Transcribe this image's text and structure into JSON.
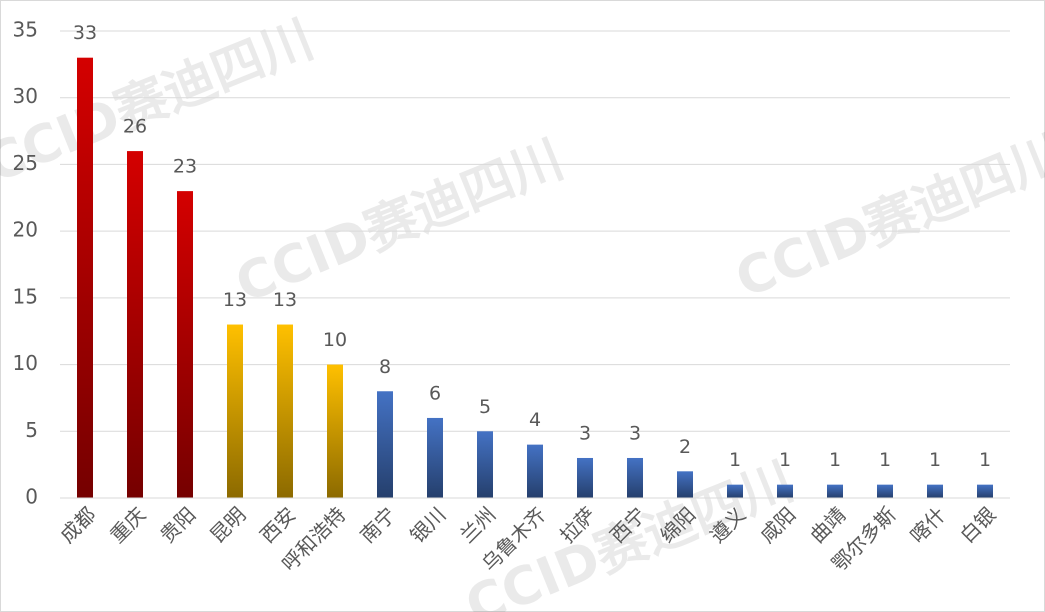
{
  "chart_data": {
    "type": "bar",
    "watermark": "CCID赛迪四川",
    "categories": [
      "成都",
      "重庆",
      "贵阳",
      "昆明",
      "西安",
      "呼和浩特",
      "南宁",
      "银川",
      "兰州",
      "乌鲁木齐",
      "拉萨",
      "西宁",
      "绵阳",
      "遵义",
      "咸阳",
      "曲靖",
      "鄂尔多斯",
      "喀什",
      "白银"
    ],
    "values": [
      33,
      26,
      23,
      13,
      13,
      10,
      8,
      6,
      5,
      4,
      3,
      3,
      2,
      1,
      1,
      1,
      1,
      1,
      1
    ],
    "colors": [
      "#d40000",
      "#d40000",
      "#d40000",
      "#ffc000",
      "#ffc000",
      "#ffc000",
      "#4472c4",
      "#4472c4",
      "#4472c4",
      "#4472c4",
      "#4472c4",
      "#4472c4",
      "#4472c4",
      "#4472c4",
      "#4472c4",
      "#4472c4",
      "#4472c4",
      "#4472c4",
      "#4472c4"
    ],
    "ylim": [
      0,
      35
    ],
    "yticks": [
      0,
      5,
      10,
      15,
      20,
      25,
      30,
      35
    ],
    "grid": true
  }
}
